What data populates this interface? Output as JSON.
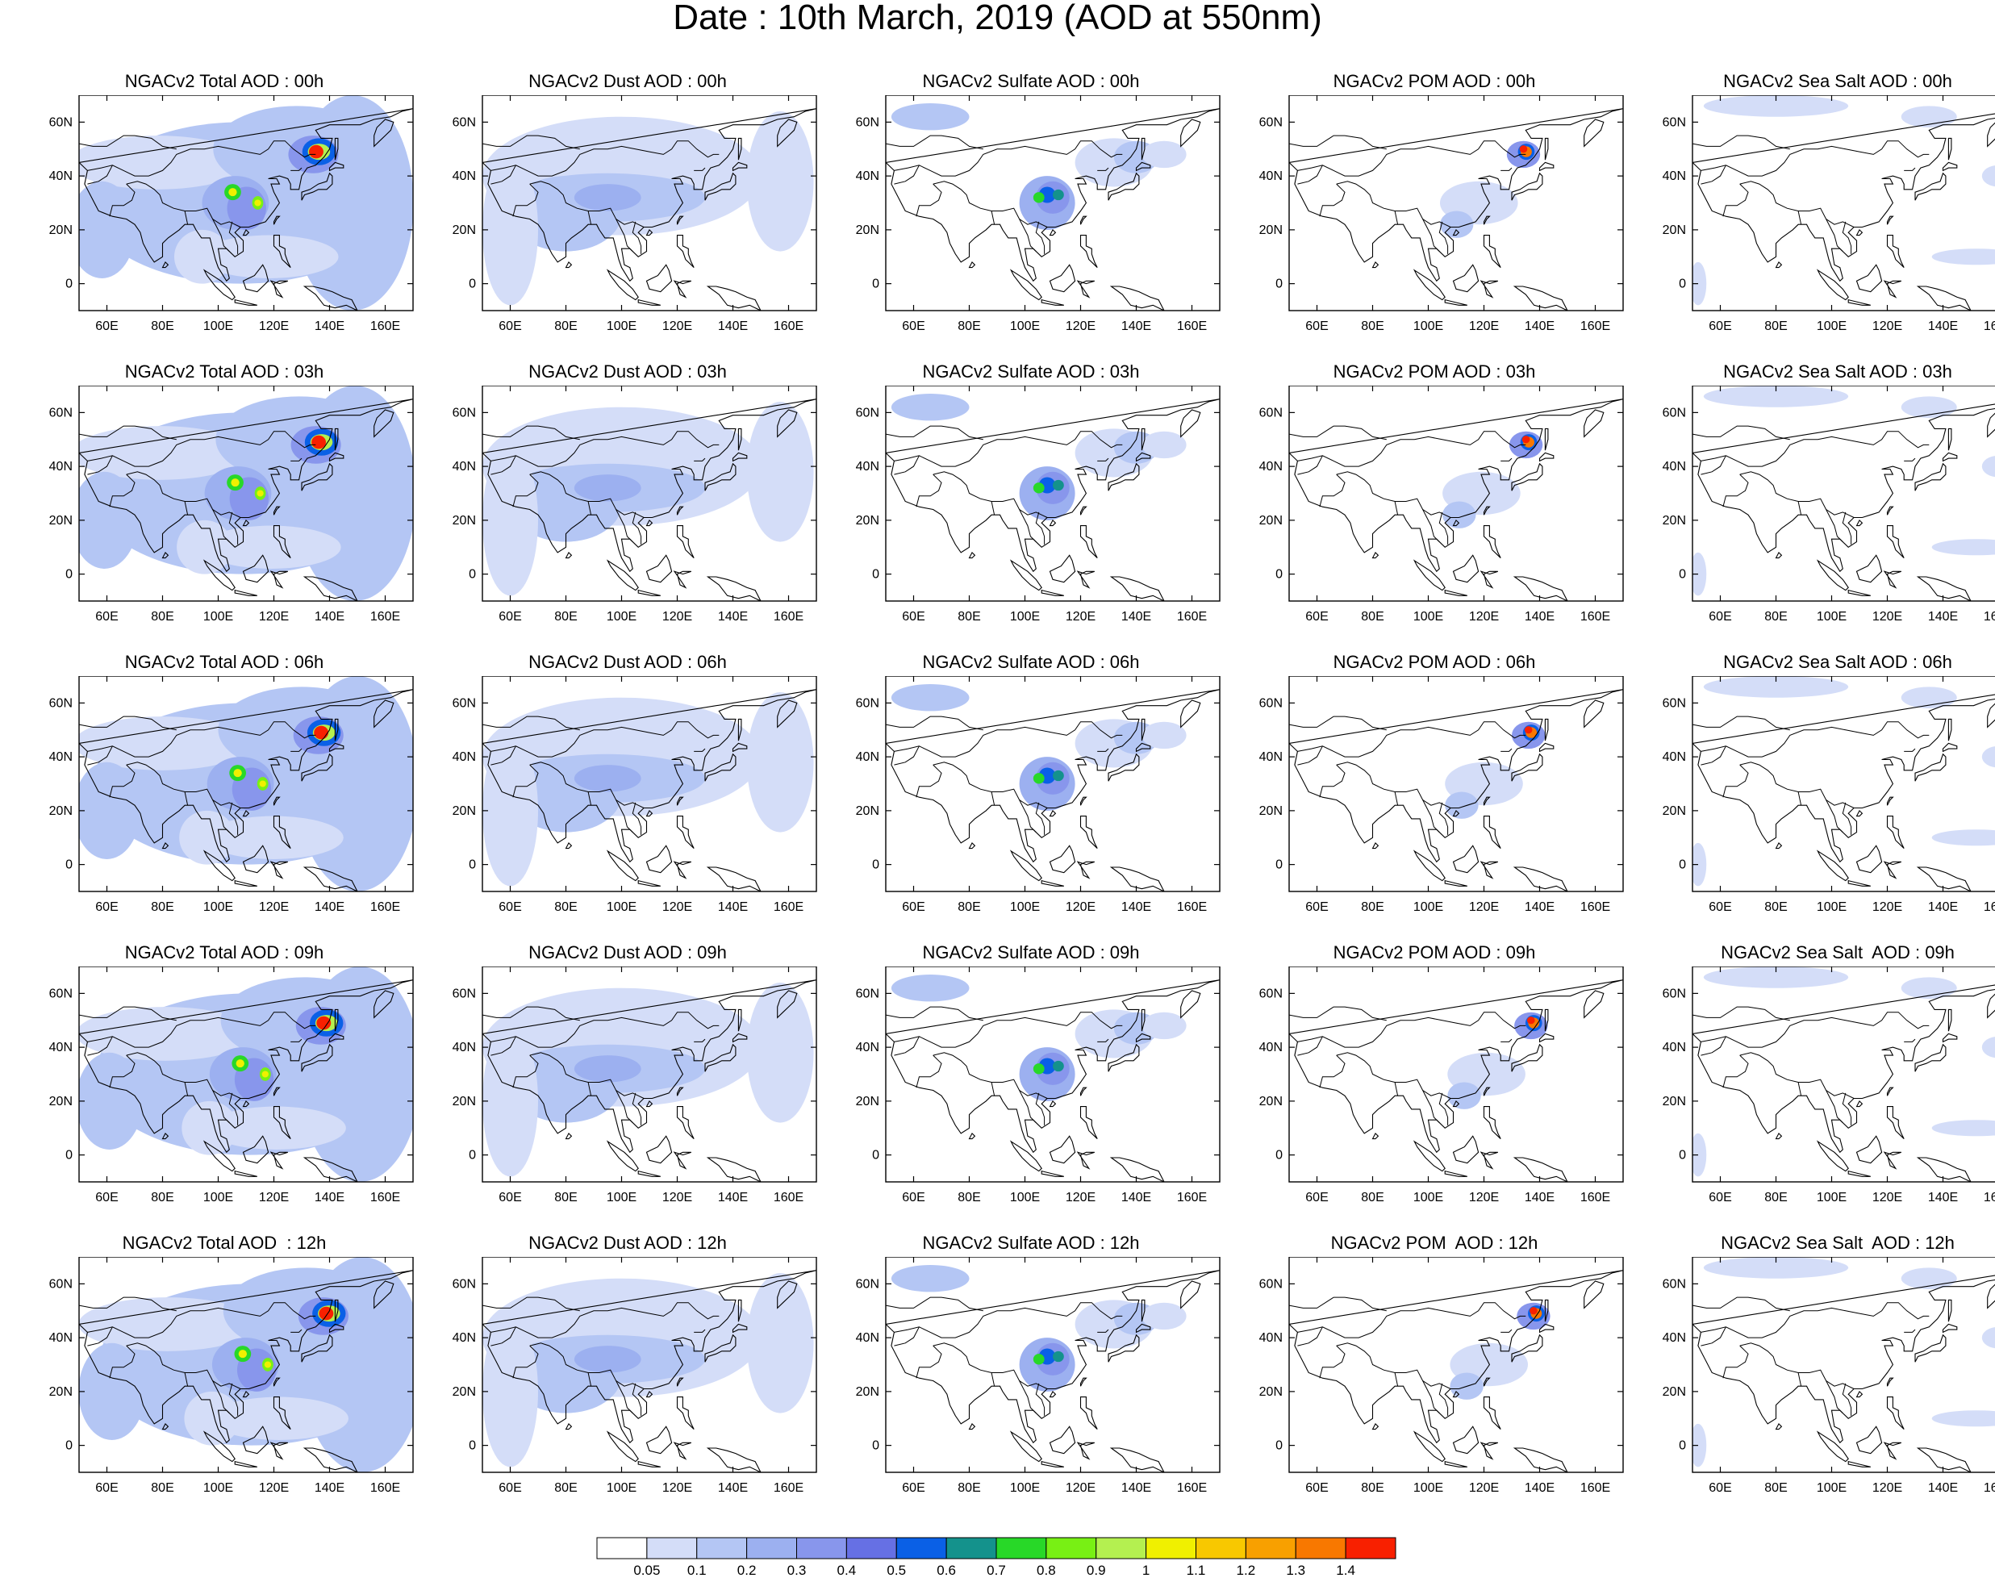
{
  "title": "Date : 10th March, 2019 (AOD at 550nm)",
  "map": {
    "lon_ticks": [
      "60E",
      "80E",
      "100E",
      "120E",
      "140E",
      "160E"
    ],
    "lat_ticks": [
      "60N",
      "40N",
      "20N",
      "0"
    ],
    "lon_values": [
      60,
      80,
      100,
      120,
      140,
      160
    ],
    "lat_values": [
      60,
      40,
      20,
      0
    ],
    "lon_range": [
      50,
      170
    ],
    "lat_range": [
      -10,
      70
    ]
  },
  "panels": [
    [
      "NGACv2 Total AOD : 00h",
      "NGACv2 Dust AOD : 00h",
      "NGACv2 Sulfate AOD : 00h",
      "NGACv2 POM AOD : 00h",
      "NGACv2 Sea Salt AOD : 00h"
    ],
    [
      "NGACv2 Total AOD : 03h",
      "NGACv2 Dust AOD : 03h",
      "NGACv2 Sulfate AOD : 03h",
      "NGACv2 POM AOD : 03h",
      "NGACv2 Sea Salt AOD : 03h"
    ],
    [
      "NGACv2 Total AOD : 06h",
      "NGACv2 Dust AOD : 06h",
      "NGACv2 Sulfate AOD : 06h",
      "NGACv2 POM AOD : 06h",
      "NGACv2 Sea Salt AOD : 06h"
    ],
    [
      "NGACv2 Total AOD : 09h",
      "NGACv2 Dust AOD : 09h",
      "NGACv2 Sulfate AOD : 09h",
      "NGACv2 POM AOD : 09h",
      "NGACv2 Sea Salt  AOD : 09h"
    ],
    [
      "NGACv2 Total AOD  : 12h",
      "NGACv2 Dust AOD : 12h",
      "NGACv2 Sulfate AOD : 12h",
      "NGACv2 POM  AOD : 12h",
      "NGACv2 Sea Salt  AOD : 12h"
    ]
  ],
  "legend": {
    "labels": [
      "0.05",
      "0.1",
      "0.2",
      "0.3",
      "0.4",
      "0.5",
      "0.6",
      "0.7",
      "0.8",
      "0.9",
      "1",
      "1.1",
      "1.2",
      "1.3",
      "1.4"
    ],
    "colors": [
      "#ffffff",
      "#d4ddf8",
      "#b4c6f4",
      "#9cb0f0",
      "#8896ec",
      "#6670e4",
      "#0a60e6",
      "#14928c",
      "#28d828",
      "#78f014",
      "#b4f050",
      "#f0f000",
      "#f8c800",
      "#f8a000",
      "#f87800",
      "#f82000"
    ]
  }
}
